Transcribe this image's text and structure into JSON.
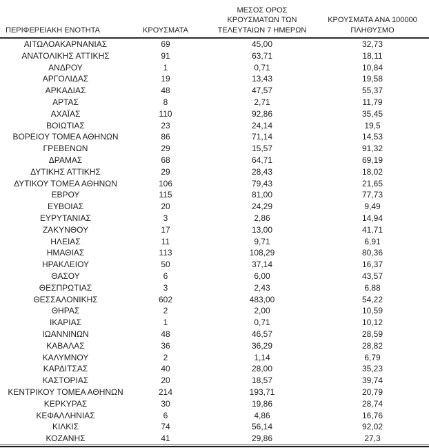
{
  "page": {
    "background_color": "#ffffff",
    "text_color": "#1f1f1f",
    "header_rule_color": "#2b2b2b",
    "bottom_rule_color": "#1c1c1c"
  },
  "table": {
    "columns": [
      {
        "key": "region",
        "label": "ΠΕΡΙΦΕΡΕΙΑΚΗ ΕΝΟΤΗΤΑ"
      },
      {
        "key": "cases",
        "label": "ΚΡΟΥΣΜΑΤΑ"
      },
      {
        "key": "avg_7day",
        "label": "ΜΕΣΟΣ ΟΡΟΣ ΚΡΟΥΣΜΑΤΩΝ ΤΩΝ ΤΕΛΕΥΤΑΙΩΝ 7 ΗΜΕΡΩΝ"
      },
      {
        "key": "per_100k",
        "label": "ΚΡΟΥΣΜΑΤΑ ΑΝΑ 100000 ΠΛΗΘΥΣΜΟ"
      }
    ],
    "rows": [
      [
        "ΑΙΤΩΛΟΑΚΑΡΝΑΝΙΑΣ",
        "69",
        "45,00",
        "32,73"
      ],
      [
        "ΑΝΑΤΟΛΙΚΗΣ ΑΤΤΙΚΗΣ",
        "91",
        "63,71",
        "18,11"
      ],
      [
        "ΑΝΔΡΟΥ",
        "1",
        "0,71",
        "10,84"
      ],
      [
        "ΑΡΓΟΛΙΔΑΣ",
        "19",
        "13,43",
        "19,58"
      ],
      [
        "ΑΡΚΑΔΙΑΣ",
        "48",
        "47,57",
        "55,37"
      ],
      [
        "ΑΡΤΑΣ",
        "8",
        "2,71",
        "11,79"
      ],
      [
        "ΑΧΑΪΑΣ",
        "110",
        "92,86",
        "35,45"
      ],
      [
        "ΒΟΙΩΤΙΑΣ",
        "23",
        "24,14",
        "19,5"
      ],
      [
        "ΒΟΡΕΙΟΥ ΤΟΜΕΑ ΑΘΗΝΩΝ",
        "86",
        "71,14",
        "14,53"
      ],
      [
        "ΓΡΕΒΕΝΩΝ",
        "29",
        "15,57",
        "91,32"
      ],
      [
        "ΔΡΑΜΑΣ",
        "68",
        "64,71",
        "69,19"
      ],
      [
        "ΔΥΤΙΚΗΣ ΑΤΤΙΚΗΣ",
        "29",
        "28,43",
        "18,02"
      ],
      [
        "ΔΥΤΙΚΟΥ ΤΟΜΕΑ ΑΘΗΝΩΝ",
        "106",
        "79,43",
        "21,65"
      ],
      [
        "ΕΒΡΟΥ",
        "115",
        "81,00",
        "77,73"
      ],
      [
        "ΕΥΒΟΙΑΣ",
        "20",
        "24,29",
        "9,49"
      ],
      [
        "ΕΥΡΥΤΑΝΙΑΣ",
        "3",
        "2,86",
        "14,94"
      ],
      [
        "ΖΑΚΥΝΘΟΥ",
        "17",
        "13,00",
        "41,71"
      ],
      [
        "ΗΛΕΙΑΣ",
        "11",
        "9,71",
        "6,91"
      ],
      [
        "ΗΜΑΘΙΑΣ",
        "113",
        "108,29",
        "80,36"
      ],
      [
        "ΗΡΑΚΛΕΙΟΥ",
        "50",
        "37,14",
        "16,37"
      ],
      [
        "ΘΑΣΟΥ",
        "6",
        "6,00",
        "43,57"
      ],
      [
        "ΘΕΣΠΡΩΤΙΑΣ",
        "3",
        "2,43",
        "6,88"
      ],
      [
        "ΘΕΣΣΑΛΟΝΙΚΗΣ",
        "602",
        "483,00",
        "54,22"
      ],
      [
        "ΘΗΡΑΣ",
        "2",
        "2,00",
        "10,59"
      ],
      [
        "ΙΚΑΡΙΑΣ",
        "1",
        "0,71",
        "10,12"
      ],
      [
        "ΙΩΑΝΝΙΝΩΝ",
        "48",
        "46,57",
        "28,59"
      ],
      [
        "ΚΑΒΑΛΑΣ",
        "36",
        "36,29",
        "28,82"
      ],
      [
        "ΚΑΛΥΜΝΟΥ",
        "2",
        "1,14",
        "6,79"
      ],
      [
        "ΚΑΡΔΙΤΣΑΣ",
        "40",
        "28,00",
        "35,23"
      ],
      [
        "ΚΑΣΤΟΡΙΑΣ",
        "20",
        "18,57",
        "39,74"
      ],
      [
        "ΚΕΝΤΡΙΚΟΥ ΤΟΜΕΑ ΑΘΗΝΩΝ",
        "214",
        "193,71",
        "20,79"
      ],
      [
        "ΚΕΡΚΥΡΑΣ",
        "30",
        "19,86",
        "28,74"
      ],
      [
        "ΚΕΦΑΛΛΗΝΙΑΣ",
        "6",
        "4,86",
        "16,76"
      ],
      [
        "ΚΙΛΚΙΣ",
        "74",
        "56,14",
        "92,02"
      ],
      [
        "ΚΟΖΑΝΗΣ",
        "41",
        "29,86",
        "27,3"
      ]
    ]
  }
}
